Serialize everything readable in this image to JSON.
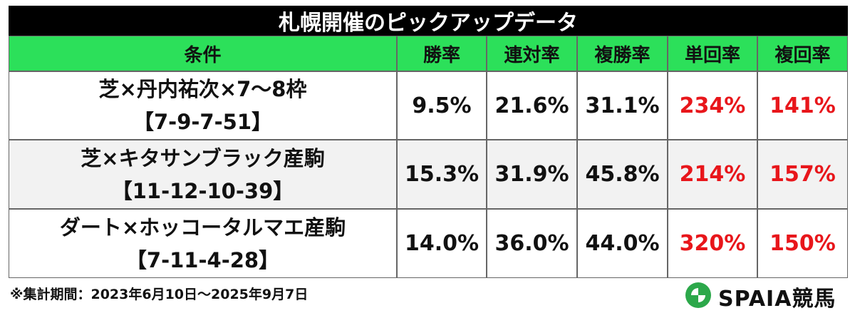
{
  "header": {
    "title": "札幌開催のピックアップデータ"
  },
  "table": {
    "columns": [
      "条件",
      "勝率",
      "連対率",
      "複勝率",
      "単回率",
      "複回率"
    ],
    "rows": [
      {
        "condition": [
          "芝×丹内祐次×7〜8枠",
          "【7-9-7-51】"
        ],
        "values": [
          "9.5%",
          "21.6%",
          "31.1%",
          "234%",
          "141%"
        ]
      },
      {
        "condition": [
          "芝×キタサンブラック産駒",
          "【11-12-10-39】"
        ],
        "values": [
          "15.3%",
          "31.9%",
          "45.8%",
          "214%",
          "157%"
        ]
      },
      {
        "condition": [
          "ダート×ホッコータルマエ産駒",
          "【7-11-4-28】"
        ],
        "values": [
          "14.0%",
          "36.0%",
          "44.0%",
          "320%",
          "150%"
        ]
      }
    ]
  },
  "footer": {
    "note": "※集計期間：2023年6月10日〜2025年9月7日",
    "logo": "SPAIA競馬"
  }
}
